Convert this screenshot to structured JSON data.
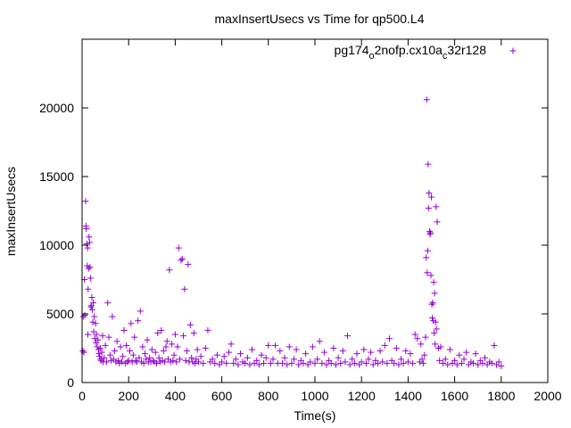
{
  "chart_data": {
    "type": "scatter",
    "title": "maxInsertUsecs vs Time for qp500.L4",
    "xlabel": "Time(s)",
    "ylabel": "maxInsertUsecs",
    "xlim": [
      0,
      2000
    ],
    "ylim": [
      0,
      25000
    ],
    "xticks": [
      "0",
      "200",
      "400",
      "600",
      "800",
      "1000",
      "1200",
      "1400",
      "1600",
      "1800",
      "2000"
    ],
    "yticks": [
      "0",
      "5000",
      "10000",
      "15000",
      "20000"
    ],
    "xtick_values": [
      0,
      200,
      400,
      600,
      800,
      1000,
      1200,
      1400,
      1600,
      1800,
      2000
    ],
    "ytick_values": [
      0,
      5000,
      10000,
      15000,
      20000
    ],
    "grid": false,
    "legend_position": "top-right",
    "series": [
      {
        "name": "pg174_o2nofp.cx10a_c32r128",
        "legend_label": {
          "base": "pg174",
          "sub1": "o",
          "mid": "2nofp.cx10a",
          "sub2": "c",
          "tail": "32r128"
        },
        "color": "#9400d3",
        "marker": "+",
        "points": [
          [
            3,
            2300
          ],
          [
            5,
            4800
          ],
          [
            8,
            2200
          ],
          [
            10,
            7500
          ],
          [
            12,
            4900
          ],
          [
            15,
            13200
          ],
          [
            17,
            11400
          ],
          [
            18,
            11200
          ],
          [
            20,
            10100
          ],
          [
            22,
            8500
          ],
          [
            24,
            9800
          ],
          [
            25,
            3500
          ],
          [
            26,
            6800
          ],
          [
            28,
            8300
          ],
          [
            30,
            10600
          ],
          [
            32,
            10200
          ],
          [
            34,
            8400
          ],
          [
            36,
            7600
          ],
          [
            38,
            5500
          ],
          [
            40,
            5600
          ],
          [
            42,
            6200
          ],
          [
            44,
            5300
          ],
          [
            46,
            4400
          ],
          [
            48,
            5800
          ],
          [
            50,
            3700
          ],
          [
            52,
            4800
          ],
          [
            55,
            3200
          ],
          [
            58,
            4300
          ],
          [
            60,
            2900
          ],
          [
            62,
            3500
          ],
          [
            65,
            2600
          ],
          [
            68,
            3100
          ],
          [
            70,
            2400
          ],
          [
            72,
            2100
          ],
          [
            75,
            1900
          ],
          [
            78,
            2500
          ],
          [
            80,
            1700
          ],
          [
            82,
            1600
          ],
          [
            85,
            2200
          ],
          [
            88,
            3400
          ],
          [
            90,
            1500
          ],
          [
            95,
            1800
          ],
          [
            100,
            2700
          ],
          [
            105,
            1500
          ],
          [
            110,
            5800
          ],
          [
            115,
            3300
          ],
          [
            120,
            2000
          ],
          [
            125,
            1600
          ],
          [
            130,
            4800
          ],
          [
            135,
            1700
          ],
          [
            140,
            2300
          ],
          [
            145,
            1500
          ],
          [
            150,
            3000
          ],
          [
            155,
            1600
          ],
          [
            160,
            1400
          ],
          [
            165,
            2600
          ],
          [
            170,
            1500
          ],
          [
            175,
            1900
          ],
          [
            180,
            3800
          ],
          [
            185,
            1400
          ],
          [
            190,
            2700
          ],
          [
            195,
            1500
          ],
          [
            200,
            1600
          ],
          [
            205,
            2300
          ],
          [
            210,
            4300
          ],
          [
            215,
            1500
          ],
          [
            220,
            2000
          ],
          [
            225,
            3300
          ],
          [
            230,
            1600
          ],
          [
            235,
            1500
          ],
          [
            240,
            4500
          ],
          [
            245,
            1800
          ],
          [
            250,
            5200
          ],
          [
            255,
            1500
          ],
          [
            260,
            2600
          ],
          [
            265,
            1400
          ],
          [
            270,
            2100
          ],
          [
            275,
            1700
          ],
          [
            280,
            3100
          ],
          [
            285,
            1500
          ],
          [
            290,
            1800
          ],
          [
            295,
            1500
          ],
          [
            300,
            2400
          ],
          [
            305,
            1600
          ],
          [
            310,
            1500
          ],
          [
            315,
            2200
          ],
          [
            320,
            1400
          ],
          [
            325,
            3600
          ],
          [
            330,
            1800
          ],
          [
            335,
            1500
          ],
          [
            340,
            3800
          ],
          [
            345,
            1600
          ],
          [
            350,
            2300
          ],
          [
            355,
            1500
          ],
          [
            360,
            2600
          ],
          [
            365,
            3000
          ],
          [
            370,
            1700
          ],
          [
            375,
            8200
          ],
          [
            380,
            1500
          ],
          [
            385,
            2800
          ],
          [
            390,
            1600
          ],
          [
            395,
            2000
          ],
          [
            400,
            3500
          ],
          [
            405,
            1500
          ],
          [
            410,
            2600
          ],
          [
            415,
            9800
          ],
          [
            420,
            1700
          ],
          [
            425,
            8900
          ],
          [
            430,
            9000
          ],
          [
            435,
            3400
          ],
          [
            440,
            6800
          ],
          [
            445,
            1600
          ],
          [
            450,
            2300
          ],
          [
            455,
            8600
          ],
          [
            460,
            1500
          ],
          [
            465,
            4200
          ],
          [
            470,
            1800
          ],
          [
            475,
            1500
          ],
          [
            480,
            3600
          ],
          [
            485,
            1400
          ],
          [
            490,
            1700
          ],
          [
            495,
            2400
          ],
          [
            500,
            1500
          ],
          [
            510,
            1900
          ],
          [
            520,
            1400
          ],
          [
            530,
            2500
          ],
          [
            540,
            3800
          ],
          [
            550,
            1500
          ],
          [
            560,
            1700
          ],
          [
            570,
            1400
          ],
          [
            580,
            2000
          ],
          [
            590,
            1300
          ],
          [
            600,
            1500
          ],
          [
            610,
            1900
          ],
          [
            620,
            1400
          ],
          [
            630,
            2200
          ],
          [
            640,
            2800
          ],
          [
            650,
            1400
          ],
          [
            660,
            1700
          ],
          [
            670,
            1300
          ],
          [
            680,
            2100
          ],
          [
            690,
            1500
          ],
          [
            700,
            1400
          ],
          [
            710,
            1800
          ],
          [
            720,
            1300
          ],
          [
            730,
            2400
          ],
          [
            740,
            1400
          ],
          [
            750,
            1600
          ],
          [
            760,
            1300
          ],
          [
            770,
            2000
          ],
          [
            780,
            1400
          ],
          [
            790,
            1800
          ],
          [
            800,
            2700
          ],
          [
            810,
            1400
          ],
          [
            820,
            1700
          ],
          [
            830,
            2700
          ],
          [
            840,
            1400
          ],
          [
            850,
            2300
          ],
          [
            860,
            1400
          ],
          [
            870,
            1800
          ],
          [
            880,
            1300
          ],
          [
            890,
            2600
          ],
          [
            900,
            1400
          ],
          [
            910,
            1700
          ],
          [
            920,
            2400
          ],
          [
            930,
            1300
          ],
          [
            940,
            1600
          ],
          [
            950,
            1400
          ],
          [
            960,
            2100
          ],
          [
            970,
            1300
          ],
          [
            980,
            1500
          ],
          [
            990,
            2600
          ],
          [
            1000,
            1400
          ],
          [
            1010,
            1700
          ],
          [
            1020,
            3000
          ],
          [
            1030,
            1400
          ],
          [
            1040,
            2200
          ],
          [
            1050,
            1300
          ],
          [
            1060,
            1600
          ],
          [
            1070,
            1400
          ],
          [
            1080,
            2500
          ],
          [
            1090,
            1300
          ],
          [
            1100,
            1800
          ],
          [
            1110,
            1400
          ],
          [
            1120,
            2300
          ],
          [
            1130,
            1500
          ],
          [
            1140,
            3400
          ],
          [
            1150,
            1300
          ],
          [
            1160,
            1700
          ],
          [
            1170,
            1400
          ],
          [
            1180,
            2100
          ],
          [
            1190,
            1300
          ],
          [
            1200,
            1500
          ],
          [
            1210,
            2400
          ],
          [
            1220,
            1400
          ],
          [
            1230,
            1700
          ],
          [
            1240,
            2200
          ],
          [
            1250,
            1300
          ],
          [
            1260,
            1600
          ],
          [
            1270,
            1400
          ],
          [
            1280,
            2300
          ],
          [
            1290,
            1500
          ],
          [
            1300,
            2700
          ],
          [
            1310,
            1400
          ],
          [
            1320,
            3200
          ],
          [
            1330,
            1600
          ],
          [
            1340,
            1400
          ],
          [
            1350,
            2500
          ],
          [
            1360,
            1300
          ],
          [
            1370,
            1700
          ],
          [
            1380,
            1400
          ],
          [
            1390,
            2300
          ],
          [
            1400,
            1500
          ],
          [
            1410,
            2100
          ],
          [
            1420,
            1400
          ],
          [
            1430,
            3500
          ],
          [
            1440,
            3200
          ],
          [
            1450,
            1500
          ],
          [
            1455,
            2800
          ],
          [
            1460,
            1700
          ],
          [
            1465,
            1400
          ],
          [
            1470,
            2000
          ],
          [
            1475,
            3300
          ],
          [
            1478,
            9100
          ],
          [
            1480,
            20600
          ],
          [
            1482,
            8000
          ],
          [
            1484,
            9600
          ],
          [
            1486,
            15900
          ],
          [
            1488,
            12700
          ],
          [
            1490,
            13800
          ],
          [
            1492,
            11000
          ],
          [
            1494,
            10800
          ],
          [
            1496,
            10900
          ],
          [
            1498,
            7800
          ],
          [
            1500,
            13500
          ],
          [
            1502,
            5700
          ],
          [
            1504,
            4700
          ],
          [
            1506,
            5800
          ],
          [
            1508,
            4500
          ],
          [
            1510,
            7300
          ],
          [
            1512,
            3600
          ],
          [
            1514,
            6500
          ],
          [
            1516,
            2800
          ],
          [
            1518,
            4400
          ],
          [
            1520,
            12800
          ],
          [
            1522,
            3900
          ],
          [
            1525,
            11700
          ],
          [
            1530,
            2500
          ],
          [
            1535,
            1600
          ],
          [
            1540,
            2600
          ],
          [
            1550,
            1400
          ],
          [
            1560,
            1700
          ],
          [
            1570,
            1300
          ],
          [
            1580,
            2400
          ],
          [
            1590,
            1400
          ],
          [
            1600,
            1600
          ],
          [
            1610,
            1300
          ],
          [
            1620,
            2000
          ],
          [
            1630,
            1400
          ],
          [
            1640,
            1700
          ],
          [
            1650,
            2200
          ],
          [
            1660,
            1300
          ],
          [
            1670,
            1500
          ],
          [
            1680,
            1400
          ],
          [
            1690,
            2100
          ],
          [
            1700,
            1300
          ],
          [
            1710,
            1600
          ],
          [
            1720,
            1400
          ],
          [
            1730,
            1800
          ],
          [
            1740,
            1300
          ],
          [
            1750,
            1500
          ],
          [
            1760,
            1400
          ],
          [
            1770,
            2700
          ],
          [
            1780,
            1300
          ],
          [
            1790,
            1500
          ],
          [
            1800,
            1200
          ]
        ]
      }
    ]
  }
}
